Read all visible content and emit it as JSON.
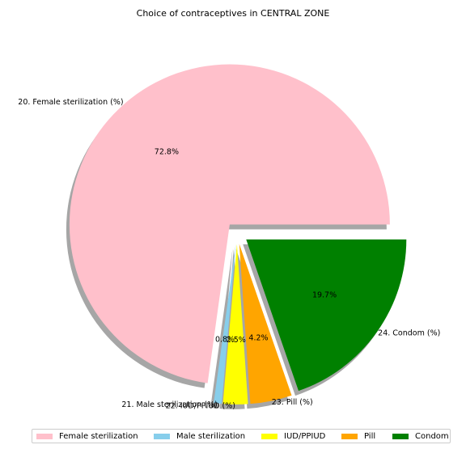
{
  "chart_data": {
    "type": "pie",
    "title": "Choice of contraceptives in CENTRAL ZONE",
    "slices": [
      {
        "label": "20. Female sterilization (%)",
        "legend": "Female sterilization",
        "value": 72.8,
        "pct_label": "72.8%",
        "color": "#ffc0cb"
      },
      {
        "label": "21. Male sterilization (%)",
        "legend": "Male sterilization",
        "value": 0.8,
        "pct_label": "0.8%",
        "color": "#87ceeb"
      },
      {
        "label": "22. IUD/PPIUD (%)",
        "legend": "IUD/PPIUD",
        "value": 2.5,
        "pct_label": "2.5%",
        "color": "#ffff00"
      },
      {
        "label": "23. Pill (%)",
        "legend": "Pill",
        "value": 4.2,
        "pct_label": "4.2%",
        "color": "#ffa500"
      },
      {
        "label": "24. Condom (%)",
        "legend": "Condom",
        "value": 19.7,
        "pct_label": "19.7%",
        "color": "#008000"
      }
    ],
    "shadow": true,
    "exploded": true,
    "legend_position": "bottom"
  }
}
